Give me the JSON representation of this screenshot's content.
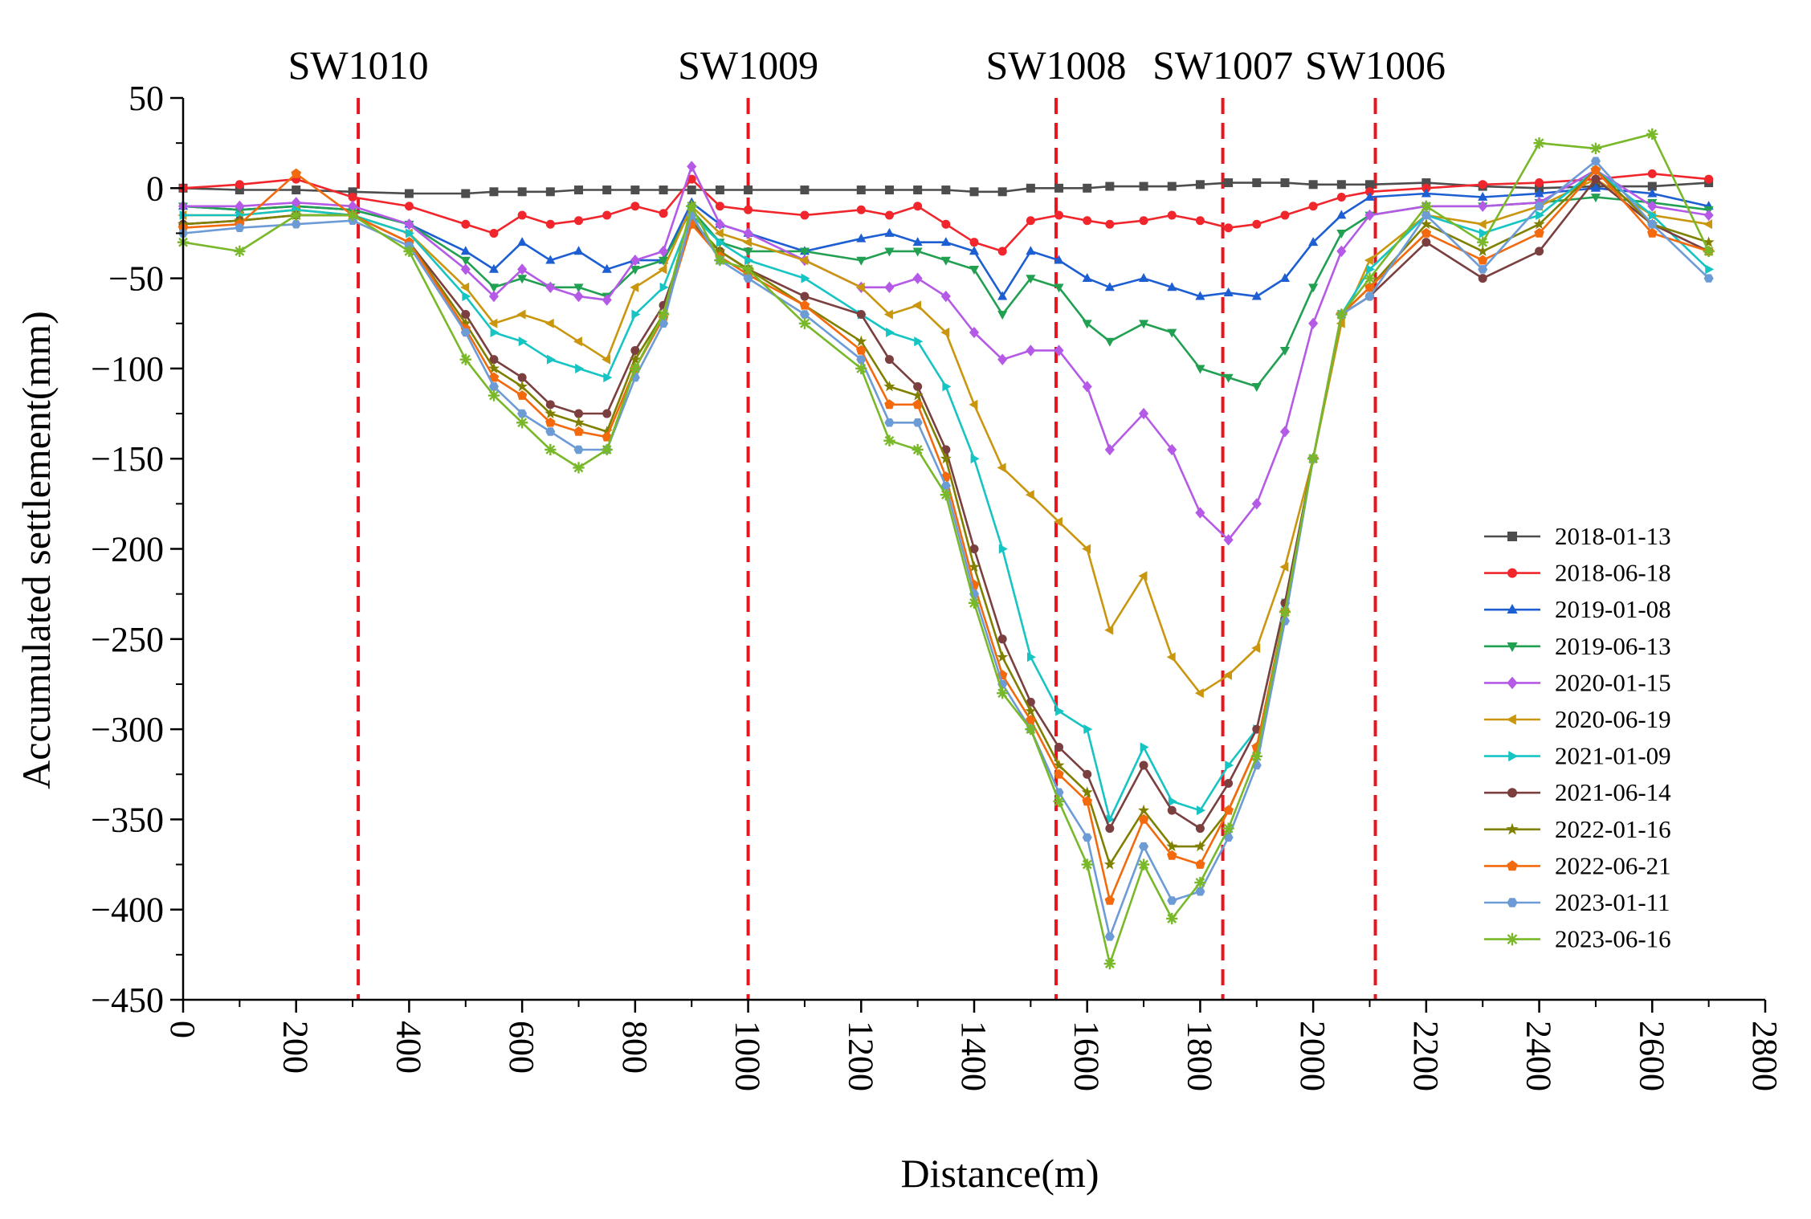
{
  "chart_data": {
    "type": "line",
    "xlabel": "Distance(m)",
    "ylabel": "Accumulated settlement(mm)",
    "xlim": [
      0,
      2800
    ],
    "ylim": [
      -450,
      50
    ],
    "xticks": [
      0,
      200,
      400,
      600,
      800,
      1000,
      1200,
      1400,
      1600,
      1800,
      2000,
      2200,
      2400,
      2600,
      2800
    ],
    "yticks": [
      50,
      0,
      -50,
      -100,
      -150,
      -200,
      -250,
      -300,
      -350,
      -400,
      -450
    ],
    "legend_position": "right",
    "reference_lines": [
      {
        "label": "SW1010",
        "x": 310,
        "color": "#e8141e"
      },
      {
        "label": "SW1009",
        "x": 1000,
        "color": "#e8141e"
      },
      {
        "label": "SW1008",
        "x": 1545,
        "color": "#e8141e"
      },
      {
        "label": "SW1007",
        "x": 1840,
        "color": "#e8141e"
      },
      {
        "label": "SW1006",
        "x": 2110,
        "color": "#e8141e"
      }
    ],
    "x": [
      0,
      100,
      200,
      300,
      400,
      500,
      550,
      600,
      650,
      700,
      750,
      800,
      850,
      900,
      950,
      1000,
      1100,
      1200,
      1250,
      1300,
      1350,
      1400,
      1450,
      1500,
      1550,
      1600,
      1640,
      1700,
      1750,
      1800,
      1850,
      1900,
      1950,
      2000,
      2050,
      2100,
      2200,
      2300,
      2400,
      2500,
      2600,
      2700
    ],
    "series": [
      {
        "name": "2018-01-13",
        "color": "#4d4d4d",
        "marker": "square",
        "values": [
          0,
          -1,
          -1,
          -2,
          -3,
          -3,
          -2,
          -2,
          -2,
          -1,
          -1,
          -1,
          -1,
          -1,
          -1,
          -1,
          -1,
          -1,
          -1,
          -1,
          -1,
          -2,
          -2,
          0,
          0,
          0,
          1,
          1,
          1,
          2,
          3,
          3,
          3,
          2,
          2,
          2,
          3,
          1,
          0,
          1,
          1,
          3
        ]
      },
      {
        "name": "2018-06-18",
        "color": "#f0262c",
        "marker": "circle",
        "values": [
          0,
          2,
          5,
          -5,
          -10,
          -20,
          -25,
          -15,
          -20,
          -18,
          -15,
          -10,
          -14,
          5,
          -10,
          -12,
          -15,
          -12,
          -15,
          -10,
          -20,
          -30,
          -35,
          -18,
          -15,
          -18,
          -20,
          -18,
          -15,
          -18,
          -22,
          -20,
          -15,
          -10,
          -5,
          -2,
          0,
          2,
          3,
          5,
          8,
          5
        ]
      },
      {
        "name": "2019-01-08",
        "color": "#1d5fd3",
        "marker": "triangle-up",
        "values": [
          -10,
          -12,
          -10,
          -12,
          -20,
          -35,
          -45,
          -30,
          -40,
          -35,
          -45,
          -40,
          -40,
          -8,
          -20,
          -25,
          -35,
          -28,
          -25,
          -30,
          -30,
          -35,
          -60,
          -35,
          -40,
          -50,
          -55,
          -50,
          -55,
          -60,
          -58,
          -60,
          -50,
          -30,
          -15,
          -5,
          -3,
          -5,
          -3,
          0,
          -3,
          -10
        ]
      },
      {
        "name": "2019-06-13",
        "color": "#22a052",
        "marker": "triangle-down",
        "values": [
          -10,
          -12,
          -10,
          -12,
          -20,
          -40,
          -55,
          -50,
          -55,
          -55,
          -60,
          -45,
          -40,
          -12,
          -30,
          -35,
          -35,
          -40,
          -35,
          -35,
          -40,
          -45,
          -70,
          -50,
          -55,
          -75,
          -85,
          -75,
          -80,
          -100,
          -105,
          -110,
          -90,
          -55,
          -25,
          -15,
          -10,
          -10,
          -8,
          -5,
          -8,
          -12
        ]
      },
      {
        "name": "2020-01-15",
        "color": "#b45ae6",
        "marker": "diamond",
        "values": [
          -10,
          -10,
          -8,
          -10,
          -20,
          -45,
          -60,
          -45,
          -55,
          -60,
          -62,
          -40,
          -35,
          12,
          -20,
          -25,
          -40,
          -55,
          -55,
          -50,
          -60,
          -80,
          -95,
          -90,
          -90,
          -110,
          -145,
          -125,
          -145,
          -180,
          -195,
          -175,
          -135,
          -75,
          -35,
          -15,
          -10,
          -10,
          -8,
          10,
          -10,
          -15
        ]
      },
      {
        "name": "2020-06-19",
        "color": "#c9960e",
        "marker": "triangle-left",
        "values": [
          -15,
          -15,
          -12,
          -15,
          -25,
          -55,
          -75,
          -70,
          -75,
          -85,
          -95,
          -55,
          -45,
          -10,
          -25,
          -30,
          -40,
          -55,
          -70,
          -65,
          -80,
          -120,
          -155,
          -170,
          -185,
          -200,
          -245,
          -215,
          -260,
          -280,
          -270,
          -255,
          -210,
          -150,
          -75,
          -40,
          -15,
          -20,
          -10,
          5,
          -15,
          -20
        ]
      },
      {
        "name": "2021-01-09",
        "color": "#17c4c4",
        "marker": "triangle-right",
        "values": [
          -15,
          -15,
          -12,
          -15,
          -25,
          -60,
          -80,
          -85,
          -95,
          -100,
          -105,
          -70,
          -55,
          -15,
          -30,
          -40,
          -50,
          -70,
          -80,
          -85,
          -110,
          -150,
          -200,
          -260,
          -290,
          -300,
          -350,
          -310,
          -340,
          -345,
          -320,
          -300,
          -230,
          -150,
          -70,
          -45,
          -15,
          -25,
          -15,
          10,
          -15,
          -45
        ]
      },
      {
        "name": "2021-06-14",
        "color": "#7b3f3f",
        "marker": "circle",
        "values": [
          -20,
          -18,
          -15,
          -15,
          -30,
          -70,
          -95,
          -105,
          -120,
          -125,
          -125,
          -90,
          -65,
          -20,
          -35,
          -45,
          -60,
          -70,
          -95,
          -110,
          -145,
          -200,
          -250,
          -285,
          -310,
          -325,
          -355,
          -320,
          -345,
          -355,
          -330,
          -300,
          -230,
          -150,
          -70,
          -60,
          -30,
          -50,
          -35,
          5,
          -20,
          -35
        ]
      },
      {
        "name": "2022-01-16",
        "color": "#808000",
        "marker": "star",
        "values": [
          -20,
          -18,
          -15,
          -15,
          -30,
          -75,
          -100,
          -110,
          -125,
          -130,
          -135,
          -95,
          -70,
          -18,
          -35,
          -45,
          -65,
          -85,
          -110,
          -115,
          -150,
          -210,
          -260,
          -290,
          -320,
          -335,
          -375,
          -345,
          -365,
          -365,
          -345,
          -310,
          -235,
          -150,
          -70,
          -55,
          -20,
          -35,
          -20,
          10,
          -20,
          -30
        ]
      },
      {
        "name": "2022-06-21",
        "color": "#f26a0d",
        "marker": "pentagon",
        "values": [
          -22,
          -20,
          8,
          -15,
          -30,
          -78,
          -105,
          -115,
          -130,
          -135,
          -138,
          -100,
          -72,
          -20,
          -38,
          -48,
          -65,
          -90,
          -120,
          -120,
          -160,
          -220,
          -270,
          -295,
          -325,
          -340,
          -395,
          -350,
          -370,
          -375,
          -345,
          -310,
          -235,
          -150,
          -70,
          -55,
          -25,
          -40,
          -25,
          10,
          -25,
          -35
        ]
      },
      {
        "name": "2023-01-11",
        "color": "#6c9bd6",
        "marker": "hexagon",
        "values": [
          -25,
          -22,
          -20,
          -18,
          -32,
          -80,
          -110,
          -125,
          -135,
          -145,
          -145,
          -105,
          -75,
          -15,
          -40,
          -50,
          -70,
          -95,
          -130,
          -130,
          -165,
          -225,
          -275,
          -300,
          -335,
          -360,
          -415,
          -365,
          -395,
          -390,
          -360,
          -320,
          -240,
          -150,
          -70,
          -60,
          -15,
          -45,
          -10,
          15,
          -20,
          -50
        ]
      },
      {
        "name": "2023-06-16",
        "color": "#78b829",
        "marker": "asterisk",
        "values": [
          -30,
          -35,
          -15,
          -15,
          -35,
          -95,
          -115,
          -130,
          -145,
          -155,
          -145,
          -100,
          -70,
          -10,
          -40,
          -45,
          -75,
          -100,
          -140,
          -145,
          -170,
          -230,
          -280,
          -300,
          -340,
          -375,
          -430,
          -375,
          -405,
          -385,
          -355,
          -315,
          -235,
          -150,
          -70,
          -50,
          -10,
          -30,
          25,
          22,
          30,
          -35
        ]
      }
    ]
  }
}
